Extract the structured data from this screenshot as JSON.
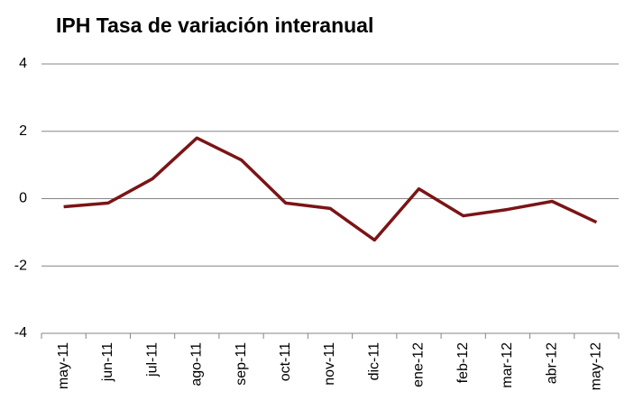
{
  "chart_data": {
    "type": "line",
    "title": "IPH Tasa de variación interanual",
    "categories": [
      "may-11",
      "jun-11",
      "jul-11",
      "ago-11",
      "sep-11",
      "oct-11",
      "nov-11",
      "dic-11",
      "ene-12",
      "feb-12",
      "mar-12",
      "abr-12",
      "may-12"
    ],
    "values": [
      -0.24,
      -0.13,
      0.59,
      1.8,
      1.15,
      -0.13,
      -0.29,
      -1.23,
      0.29,
      -0.51,
      -0.32,
      -0.08,
      -0.7
    ],
    "color": "#7b1416",
    "ylim": [
      -4,
      4
    ],
    "yticks": [
      -4,
      -2,
      0,
      2,
      4
    ],
    "grid": true
  }
}
